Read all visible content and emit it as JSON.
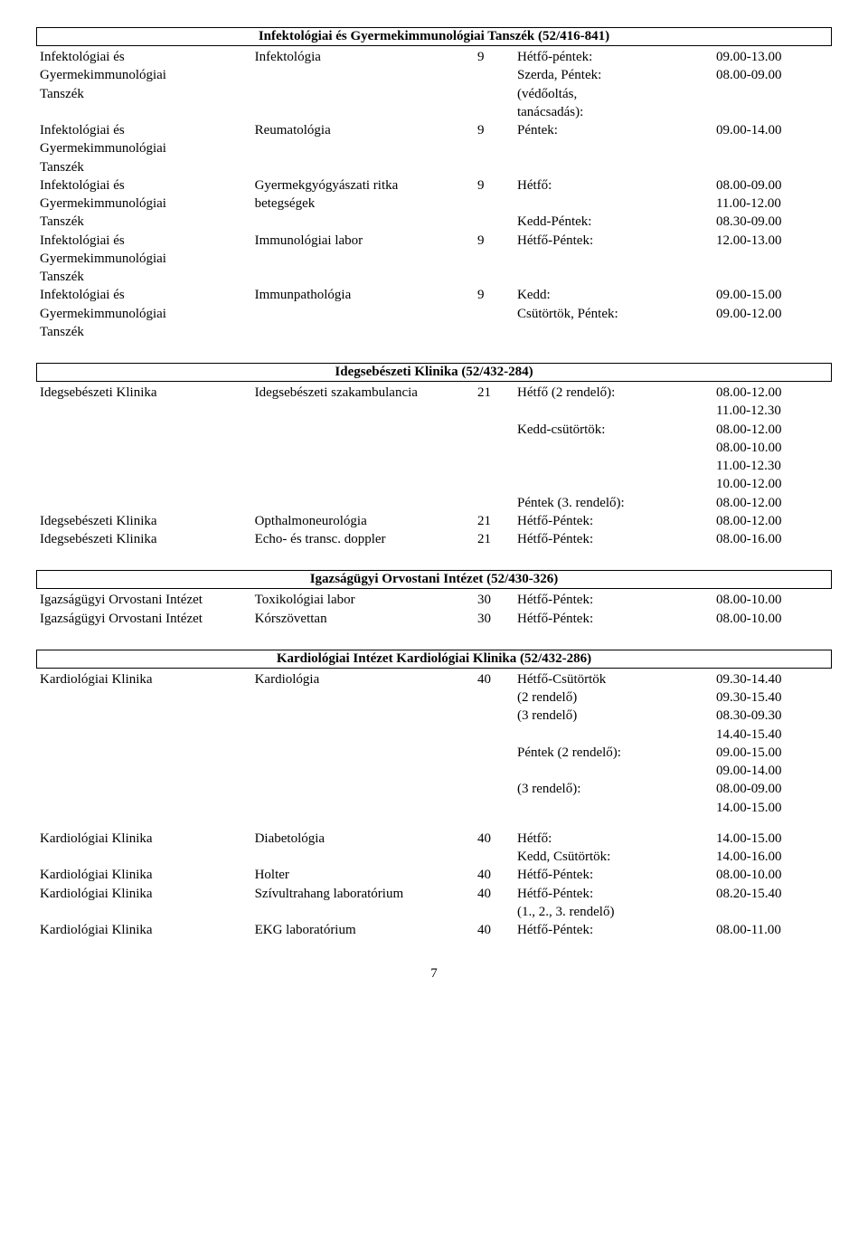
{
  "page_number": "7",
  "sections": [
    {
      "title": "Infektológiai és Gyermekimmunológiai Tanszék (52/416-841)",
      "rows": [
        {
          "c1": "Infektológiai és",
          "c2": "Infektológia",
          "c3": "9",
          "c4": "Hétfő-péntek:",
          "c5": "09.00-13.00"
        },
        {
          "c1": "Gyermekimmunológiai",
          "c2": "",
          "c3": "",
          "c4": "Szerda, Péntek:",
          "c5": "08.00-09.00"
        },
        {
          "c1": "Tanszék",
          "c2": "",
          "c3": "",
          "c4": "(védőoltás,",
          "c5": ""
        },
        {
          "c1": "",
          "c2": "",
          "c3": "",
          "c4": "tanácsadás):",
          "c5": ""
        },
        {
          "c1": "Infektológiai és",
          "c2": "Reumatológia",
          "c3": "9",
          "c4": "Péntek:",
          "c5": "09.00-14.00"
        },
        {
          "c1": "Gyermekimmunológiai",
          "c2": "",
          "c3": "",
          "c4": "",
          "c5": ""
        },
        {
          "c1": "Tanszék",
          "c2": "",
          "c3": "",
          "c4": "",
          "c5": ""
        },
        {
          "c1": "Infektológiai és",
          "c2": "Gyermekgyógyászati ritka",
          "c3": "9",
          "c4": "Hétfő:",
          "c5": "08.00-09.00"
        },
        {
          "c1": "Gyermekimmunológiai",
          "c2": "betegségek",
          "c3": "",
          "c4": "",
          "c5": "11.00-12.00"
        },
        {
          "c1": "Tanszék",
          "c2": "",
          "c3": "",
          "c4": "Kedd-Péntek:",
          "c5": "08.30-09.00"
        },
        {
          "c1": "Infektológiai és",
          "c2": "Immunológiai labor",
          "c3": "9",
          "c4": "Hétfő-Péntek:",
          "c5": "12.00-13.00"
        },
        {
          "c1": "Gyermekimmunológiai",
          "c2": "",
          "c3": "",
          "c4": "",
          "c5": ""
        },
        {
          "c1": "Tanszék",
          "c2": "",
          "c3": "",
          "c4": "",
          "c5": ""
        },
        {
          "c1": "Infektológiai és",
          "c2": "Immunpathológia",
          "c3": "9",
          "c4": "Kedd:",
          "c5": "09.00-15.00"
        },
        {
          "c1": "Gyermekimmunológiai",
          "c2": "",
          "c3": "",
          "c4": "Csütörtök, Péntek:",
          "c5": "09.00-12.00"
        },
        {
          "c1": "Tanszék",
          "c2": "",
          "c3": "",
          "c4": "",
          "c5": ""
        }
      ]
    },
    {
      "title": "Idegsebészeti Klinika (52/432-284)",
      "rows": [
        {
          "c1": "Idegsebészeti Klinika",
          "c2": "Idegsebészeti szakambulancia",
          "c3": "21",
          "c4": "Hétfő (2 rendelő):",
          "c5": "08.00-12.00"
        },
        {
          "c1": "",
          "c2": "",
          "c3": "",
          "c4": "",
          "c5": "11.00-12.30"
        },
        {
          "c1": "",
          "c2": "",
          "c3": "",
          "c4": "Kedd-csütörtök:",
          "c5": "08.00-12.00"
        },
        {
          "c1": "",
          "c2": "",
          "c3": "",
          "c4": "",
          "c5": "08.00-10.00"
        },
        {
          "c1": "",
          "c2": "",
          "c3": "",
          "c4": "",
          "c5": "11.00-12.30"
        },
        {
          "c1": "",
          "c2": "",
          "c3": "",
          "c4": "",
          "c5": "10.00-12.00"
        },
        {
          "c1": "",
          "c2": "",
          "c3": "",
          "c4": "Péntek (3. rendelő):",
          "c5": "08.00-12.00"
        },
        {
          "c1": "Idegsebészeti Klinika",
          "c2": "Opthalmoneurológia",
          "c3": "21",
          "c4": "Hétfő-Péntek:",
          "c5": "08.00-12.00"
        },
        {
          "c1": "Idegsebészeti Klinika",
          "c2": "Echo- és transc. doppler",
          "c3": "21",
          "c4": "Hétfő-Péntek:",
          "c5": "08.00-16.00"
        }
      ]
    },
    {
      "title": "Igazságügyi Orvostani Intézet (52/430-326)",
      "rows": [
        {
          "c1": "Igazságügyi Orvostani Intézet",
          "c2": "Toxikológiai labor",
          "c3": "30",
          "c4": "Hétfő-Péntek:",
          "c5": "08.00-10.00"
        },
        {
          "c1": "Igazságügyi Orvostani Intézet",
          "c2": "Kórszövettan",
          "c3": "30",
          "c4": "Hétfő-Péntek:",
          "c5": "08.00-10.00"
        }
      ]
    },
    {
      "title": "Kardiológiai Intézet Kardiológiai Klinika (52/432-286)",
      "rows": [
        {
          "c1": "Kardiológiai Klinika",
          "c2": "Kardiológia",
          "c3": "40",
          "c4": "Hétfő-Csütörtök",
          "c5": "09.30-14.40"
        },
        {
          "c1": "",
          "c2": "",
          "c3": "",
          "c4": "(2 rendelő)",
          "c5": "09.30-15.40"
        },
        {
          "c1": "",
          "c2": "",
          "c3": "",
          "c4": "(3 rendelő)",
          "c5": "08.30-09.30"
        },
        {
          "c1": "",
          "c2": "",
          "c3": "",
          "c4": "",
          "c5": "14.40-15.40"
        },
        {
          "c1": "",
          "c2": "",
          "c3": "",
          "c4": "Péntek (2 rendelő):",
          "c5": "09.00-15.00"
        },
        {
          "c1": "",
          "c2": "",
          "c3": "",
          "c4": "",
          "c5": "09.00-14.00"
        },
        {
          "c1": "",
          "c2": "",
          "c3": "",
          "c4": "(3 rendelő):",
          "c5": "08.00-09.00"
        },
        {
          "c1": "",
          "c2": "",
          "c3": "",
          "c4": "",
          "c5": "14.00-15.00"
        },
        {
          "gap": true
        },
        {
          "c1": "Kardiológiai Klinika",
          "c2": "Diabetológia",
          "c3": "40",
          "c4": "Hétfő:",
          "c5": "14.00-15.00"
        },
        {
          "c1": "",
          "c2": "",
          "c3": "",
          "c4": "Kedd, Csütörtök:",
          "c5": "14.00-16.00"
        },
        {
          "c1": "Kardiológiai Klinika",
          "c2": "Holter",
          "c3": "40",
          "c4": "Hétfő-Péntek:",
          "c5": "08.00-10.00"
        },
        {
          "c1": "Kardiológiai Klinika",
          "c2": "Szívultrahang laboratórium",
          "c3": "40",
          "c4": "Hétfő-Péntek:",
          "c5": "08.20-15.40"
        },
        {
          "c1": "",
          "c2": "",
          "c3": "",
          "c4": "(1., 2., 3. rendelő)",
          "c5": ""
        },
        {
          "c1": "Kardiológiai Klinika",
          "c2": "EKG laboratórium",
          "c3": "40",
          "c4": "Hétfő-Péntek:",
          "c5": "08.00-11.00"
        }
      ]
    }
  ]
}
